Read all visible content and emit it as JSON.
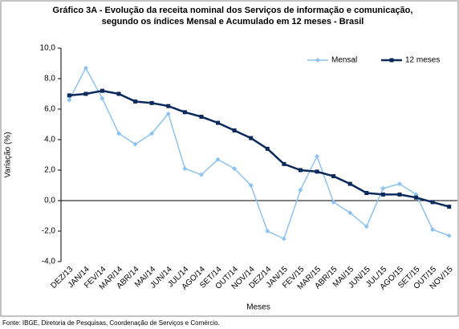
{
  "chart_data": {
    "type": "line",
    "title": [
      "Gráfico 3A - Evolução da receita nominal dos Serviços de informação e comunicação,",
      "segundo os índices Mensal e Acumulado em 12 meses - Brasil"
    ],
    "y_label": "Variação (%)",
    "x_label": "Meses",
    "source": "Fonte: IBGE, Diretoria de Pesquisas, Coordenação de Serviços e Comércio.",
    "categories": [
      "DEZ/13",
      "JAN/14",
      "FEV/14",
      "MAR/14",
      "ABR/14",
      "MAI/14",
      "JUN/14",
      "JUL/14",
      "AGO/14",
      "SET/14",
      "OUT/14",
      "NOV/14",
      "DEZ/14",
      "JAN/15",
      "FEV/15",
      "MAR/15",
      "ABR/15",
      "MAI/15",
      "JUN/15",
      "JUL/15",
      "AGO/15",
      "SET/15",
      "OUT/15",
      "NOV/15"
    ],
    "series": [
      {
        "name": "Mensal",
        "color": "#8dc3ee",
        "values": [
          6.6,
          8.7,
          6.7,
          4.4,
          3.7,
          4.4,
          5.7,
          2.1,
          1.7,
          2.7,
          2.1,
          1.0,
          -2.0,
          -2.5,
          0.7,
          2.9,
          -0.1,
          -0.8,
          -1.7,
          0.8,
          1.1,
          0.4,
          -1.9,
          -2.3
        ]
      },
      {
        "name": "12 meses",
        "color": "#0b2a5c",
        "values": [
          6.9,
          7.0,
          7.2,
          7.0,
          6.5,
          6.4,
          6.2,
          5.8,
          5.5,
          5.1,
          4.6,
          4.1,
          3.4,
          2.4,
          2.0,
          1.9,
          1.6,
          1.1,
          0.5,
          0.4,
          0.4,
          0.2,
          -0.1,
          -0.4
        ]
      }
    ],
    "ylim": [
      -4,
      10
    ],
    "yticks": [
      {
        "value": -4,
        "label": "-4,0"
      },
      {
        "value": -2,
        "label": "-2,0"
      },
      {
        "value": 0,
        "label": "0,0"
      },
      {
        "value": 2,
        "label": "2,0"
      },
      {
        "value": 4,
        "label": "4,0"
      },
      {
        "value": 6,
        "label": "6,0"
      },
      {
        "value": 8,
        "label": "8,0"
      },
      {
        "value": 10,
        "label": "10,0"
      }
    ],
    "grid": false,
    "legend": "top-right"
  }
}
